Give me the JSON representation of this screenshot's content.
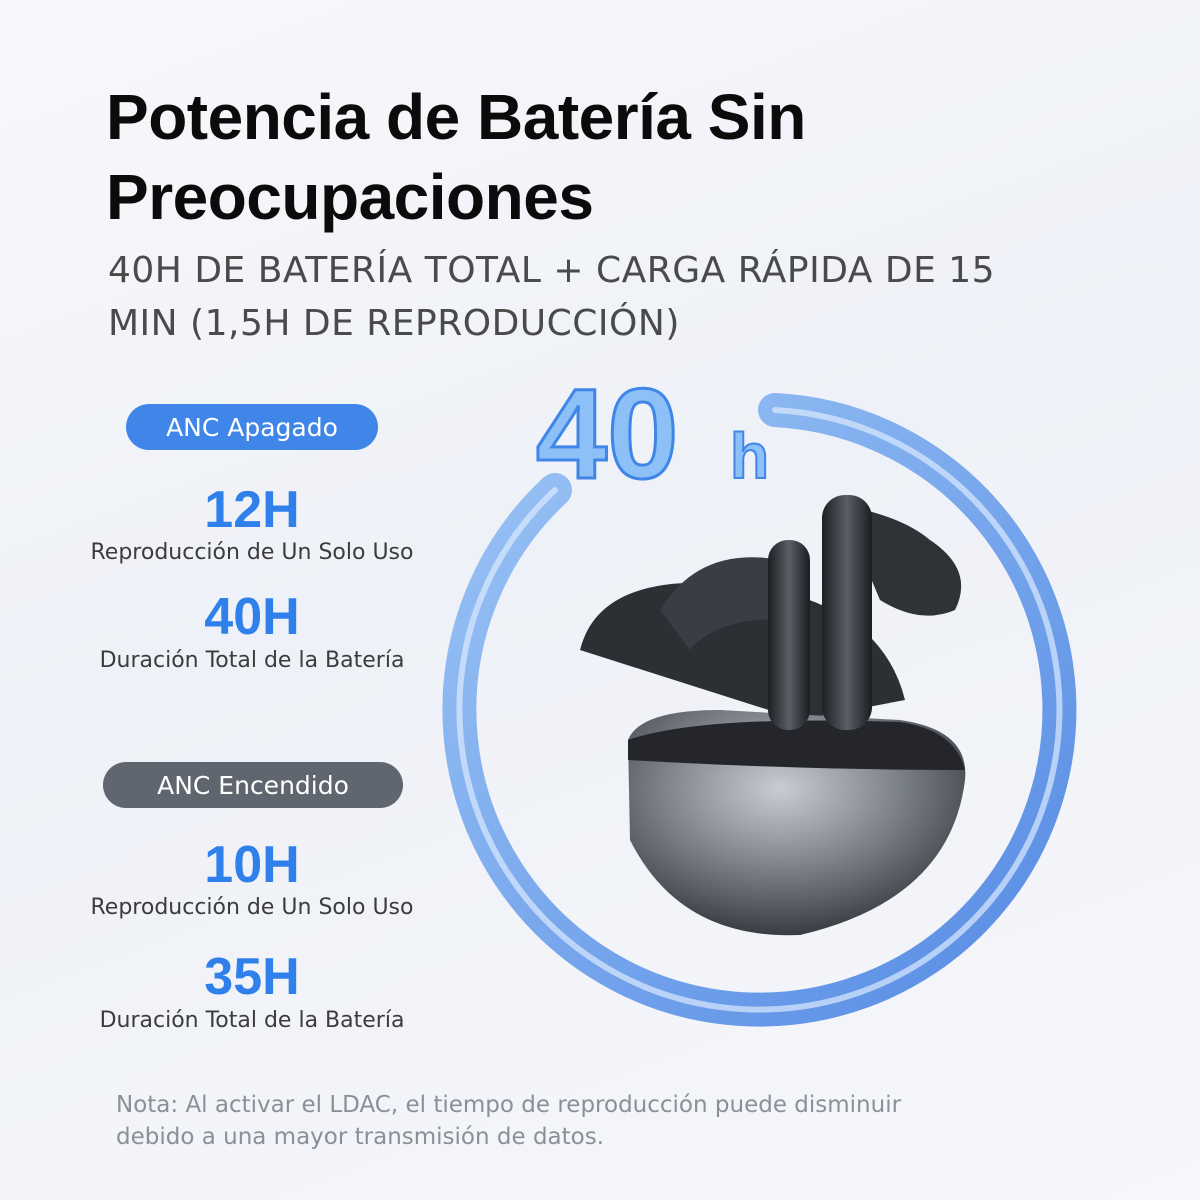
{
  "header": {
    "title_lines": [
      "Potencia de Batería Sin",
      "Preocupaciones"
    ],
    "subtitle_lines": [
      "40H DE BATERÍA TOTAL + CARGA RÁPIDA DE 15",
      "MIN (1,5H DE REPRODUCCIÓN)"
    ]
  },
  "modes": [
    {
      "badge": "ANC Apagado",
      "stats": [
        {
          "value": "12H",
          "label": "Reproducción de Un Solo Uso"
        },
        {
          "value": "40H",
          "label": "Duración Total de la Batería"
        }
      ]
    },
    {
      "badge": "ANC Encendido",
      "stats": [
        {
          "value": "10H",
          "label": "Reproducción de Un Solo Uso"
        },
        {
          "value": "35H",
          "label": "Duración Total de la Batería"
        }
      ]
    }
  ],
  "ring_label": {
    "number": "40",
    "unit": "h"
  },
  "note_lines": [
    "Nota: Al activar el LDAC, el tiempo de reproducción puede disminuir",
    "debido a una mayor transmisión de datos."
  ]
}
